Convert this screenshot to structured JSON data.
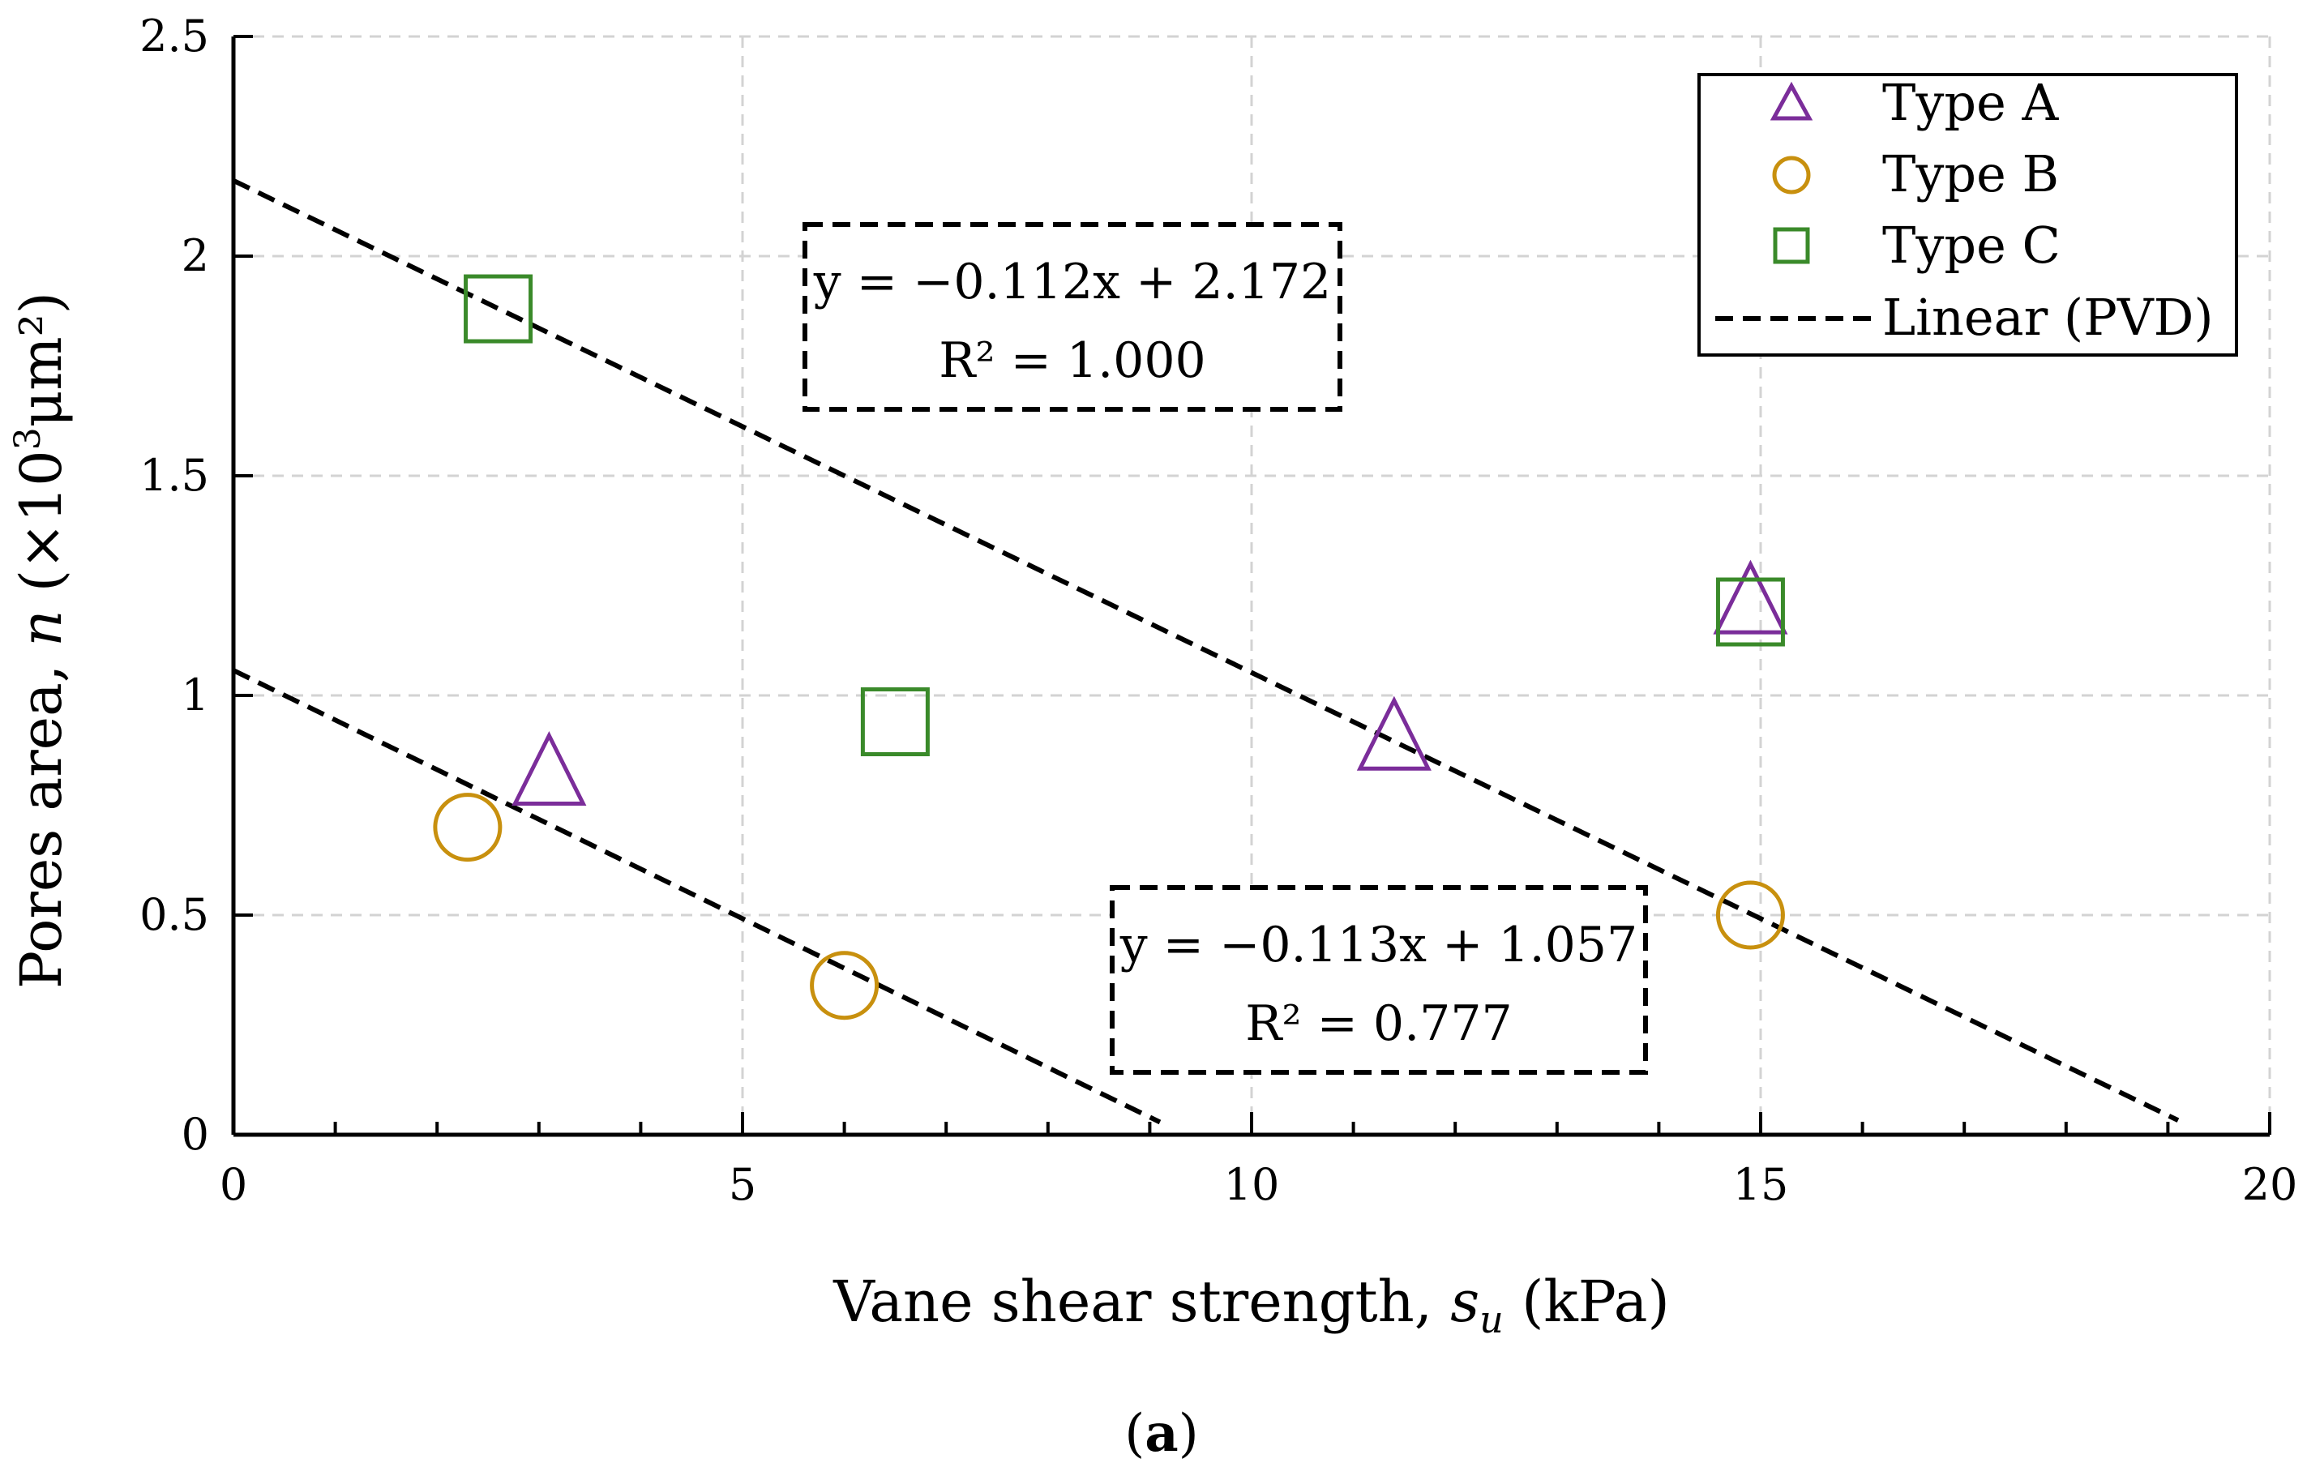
{
  "chart_data": {
    "type": "scatter",
    "xlabel": {
      "prefix": "Vane shear strength, ",
      "symbol": "s",
      "sub": "u",
      "suffix": " (kPa)"
    },
    "ylabel": {
      "prefix": "Pores area, ",
      "symbol": "n",
      "unit_a": " (×10",
      "sup": "3",
      "unit_b": "μm²)"
    },
    "xlim": [
      0,
      20
    ],
    "ylim": [
      0,
      2.5
    ],
    "x_ticks": [
      0,
      5,
      10,
      15,
      20
    ],
    "x_tick_labels": [
      "0",
      "5",
      "10",
      "15",
      "20"
    ],
    "y_ticks": [
      0,
      0.5,
      1,
      1.5,
      2,
      2.5
    ],
    "y_tick_labels": [
      "0",
      "0.5",
      "1",
      "1.5",
      "2",
      "2.5"
    ],
    "grid": true,
    "legend_position": "top-right",
    "series": [
      {
        "name": "Type A",
        "marker": "triangle",
        "color": "#7B2D9A",
        "x": [
          3.1,
          11.4,
          14.9
        ],
        "y": [
          0.82,
          0.9,
          1.21
        ]
      },
      {
        "name": "Type B",
        "marker": "circle",
        "color": "#C8900E",
        "x": [
          2.3,
          6.0,
          14.9
        ],
        "y": [
          0.7,
          0.34,
          0.5
        ]
      },
      {
        "name": "Type C",
        "marker": "square",
        "color": "#3A8A2A",
        "x": [
          2.6,
          6.5,
          14.9
        ],
        "y": [
          1.88,
          0.94,
          1.19
        ]
      }
    ],
    "trendlines": [
      {
        "name": "Linear (PVD)",
        "slope": -0.112,
        "intercept": 2.172,
        "x_range": [
          0,
          19.1
        ],
        "equation": "y = −0.112x + 2.172",
        "r2": "R² = 1.000"
      },
      {
        "name": "Linear (PVD)",
        "slope": -0.113,
        "intercept": 1.057,
        "x_range": [
          0,
          9.1
        ],
        "equation": "y = −0.113x + 1.057",
        "r2": "R² = 0.777"
      }
    ],
    "legend_line_label": "Linear (PVD)",
    "caption": {
      "open": "(",
      "letter": "a",
      "close": ")"
    }
  }
}
